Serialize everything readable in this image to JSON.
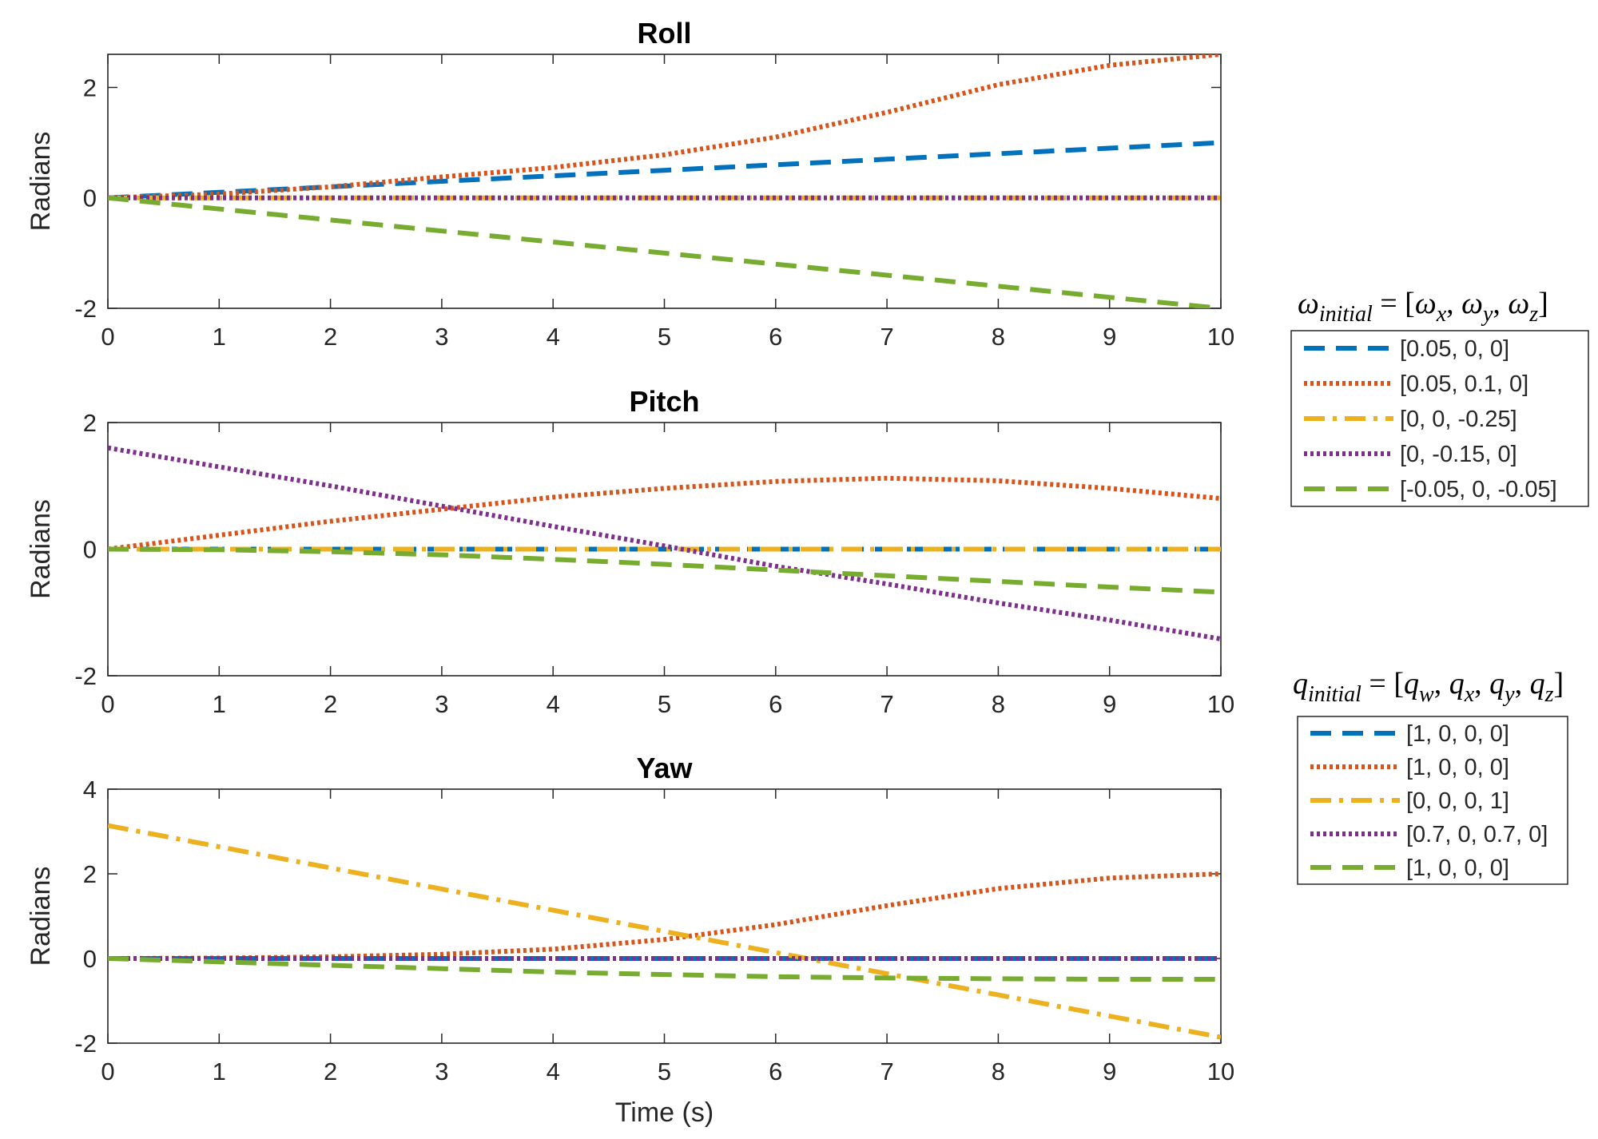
{
  "colors": {
    "blue": "#0072BD",
    "orange": "#D95319",
    "yellow": "#EDB120",
    "purple": "#7E2F8E",
    "green": "#77AC30",
    "axis": "#262626"
  },
  "chart_data": [
    {
      "type": "line",
      "title": "Roll",
      "xlabel": "",
      "ylabel": "Radians",
      "xlim": [
        0,
        10
      ],
      "ylim": [
        -2,
        2.6
      ],
      "xticks": [
        0,
        1,
        2,
        3,
        4,
        5,
        6,
        7,
        8,
        9,
        10
      ],
      "yticks": [
        -2,
        0,
        2
      ],
      "ytick_labels": [
        "-2",
        "0",
        "2"
      ],
      "series": [
        {
          "key": "s1",
          "color": "blue",
          "style": "dashed",
          "x": [
            0,
            1,
            2,
            3,
            4,
            5,
            6,
            7,
            8,
            9,
            10
          ],
          "y": [
            0,
            0.1,
            0.2,
            0.3,
            0.4,
            0.5,
            0.6,
            0.7,
            0.8,
            0.9,
            1.0
          ]
        },
        {
          "key": "s2",
          "color": "orange",
          "style": "dotted",
          "x": [
            0,
            1,
            2,
            3,
            4,
            5,
            6,
            7,
            8,
            9,
            10
          ],
          "y": [
            0,
            0.07,
            0.2,
            0.38,
            0.55,
            0.78,
            1.1,
            1.55,
            2.05,
            2.4,
            2.6
          ]
        },
        {
          "key": "s3",
          "color": "yellow",
          "style": "dashdot",
          "x": [
            0,
            10
          ],
          "y": [
            0,
            0
          ]
        },
        {
          "key": "s4",
          "color": "purple",
          "style": "dotted",
          "x": [
            0,
            10
          ],
          "y": [
            0,
            0
          ]
        },
        {
          "key": "s5",
          "color": "green",
          "style": "dashed",
          "x": [
            0,
            1,
            2,
            3,
            4,
            5,
            6,
            7,
            8,
            9,
            10
          ],
          "y": [
            0,
            -0.2,
            -0.4,
            -0.6,
            -0.8,
            -1.0,
            -1.2,
            -1.4,
            -1.6,
            -1.8,
            -2.0
          ]
        }
      ]
    },
    {
      "type": "line",
      "title": "Pitch",
      "xlabel": "",
      "ylabel": "Radians",
      "xlim": [
        0,
        10
      ],
      "ylim": [
        -2,
        2
      ],
      "xticks": [
        0,
        1,
        2,
        3,
        4,
        5,
        6,
        7,
        8,
        9,
        10
      ],
      "yticks": [
        -2,
        0,
        2
      ],
      "ytick_labels": [
        "-2",
        "0",
        "2"
      ],
      "series": [
        {
          "key": "s1",
          "color": "blue",
          "style": "dashed",
          "x": [
            0,
            10
          ],
          "y": [
            0,
            0
          ]
        },
        {
          "key": "s2",
          "color": "orange",
          "style": "dotted",
          "x": [
            0,
            1,
            2,
            3,
            4,
            5,
            6,
            7,
            8,
            9,
            10
          ],
          "y": [
            0,
            0.22,
            0.44,
            0.63,
            0.82,
            0.96,
            1.07,
            1.12,
            1.08,
            0.96,
            0.8
          ]
        },
        {
          "key": "s3",
          "color": "yellow",
          "style": "dashdot",
          "x": [
            0,
            10
          ],
          "y": [
            0,
            0
          ]
        },
        {
          "key": "s4",
          "color": "purple",
          "style": "dotted",
          "x": [
            0,
            1,
            2,
            3,
            4,
            5,
            6,
            7,
            8,
            9,
            10
          ],
          "y": [
            1.6,
            1.3,
            1.0,
            0.68,
            0.36,
            0.05,
            -0.27,
            -0.55,
            -0.85,
            -1.12,
            -1.42
          ]
        },
        {
          "key": "s5",
          "color": "green",
          "style": "dashed",
          "x": [
            0,
            1,
            2,
            3,
            4,
            5,
            6,
            7,
            8,
            9,
            10
          ],
          "y": [
            0,
            -0.01,
            -0.04,
            -0.09,
            -0.16,
            -0.24,
            -0.33,
            -0.42,
            -0.51,
            -0.6,
            -0.68
          ]
        }
      ]
    },
    {
      "type": "line",
      "title": "Yaw",
      "xlabel": "Time (s)",
      "ylabel": "Radians",
      "xlim": [
        0,
        10
      ],
      "ylim": [
        -2,
        4
      ],
      "xticks": [
        0,
        1,
        2,
        3,
        4,
        5,
        6,
        7,
        8,
        9,
        10
      ],
      "yticks": [
        -2,
        0,
        2,
        4
      ],
      "ytick_labels": [
        "-2",
        "0",
        "2",
        "4"
      ],
      "series": [
        {
          "key": "s1",
          "color": "blue",
          "style": "dashed",
          "x": [
            0,
            10
          ],
          "y": [
            0,
            0
          ]
        },
        {
          "key": "s2",
          "color": "orange",
          "style": "dotted",
          "x": [
            0,
            1,
            2,
            3,
            4,
            5,
            6,
            7,
            8,
            9,
            10
          ],
          "y": [
            0,
            0.01,
            0.04,
            0.1,
            0.22,
            0.45,
            0.8,
            1.25,
            1.65,
            1.9,
            2.0
          ]
        },
        {
          "key": "s3",
          "color": "yellow",
          "style": "dashdot",
          "x": [
            0,
            1,
            2,
            3,
            4,
            5,
            6,
            7,
            8,
            9,
            10
          ],
          "y": [
            3.14,
            2.64,
            2.14,
            1.64,
            1.14,
            0.64,
            0.14,
            -0.36,
            -0.86,
            -1.36,
            -1.86
          ]
        },
        {
          "key": "s4",
          "color": "purple",
          "style": "dotted",
          "x": [
            0,
            10
          ],
          "y": [
            0,
            0
          ]
        },
        {
          "key": "s5",
          "color": "green",
          "style": "dashed",
          "x": [
            0,
            1,
            2,
            3,
            4,
            5,
            6,
            7,
            8,
            9,
            10
          ],
          "y": [
            0,
            -0.08,
            -0.16,
            -0.24,
            -0.32,
            -0.38,
            -0.43,
            -0.46,
            -0.48,
            -0.49,
            -0.49
          ]
        }
      ]
    }
  ],
  "legends": [
    {
      "title_parts": [
        "ω",
        "initial",
        " = [",
        "ω",
        "x",
        ", ",
        "ω",
        "y",
        ", ",
        "ω",
        "z",
        "]"
      ],
      "entries": [
        {
          "color": "blue",
          "style": "dashed",
          "label": "[0.05, 0, 0]"
        },
        {
          "color": "orange",
          "style": "dotted",
          "label": "[0.05, 0.1, 0]"
        },
        {
          "color": "yellow",
          "style": "dashdot",
          "label": "[0, 0, -0.25]"
        },
        {
          "color": "purple",
          "style": "dotted",
          "label": "[0, -0.15, 0]"
        },
        {
          "color": "green",
          "style": "dashed",
          "label": "[-0.05, 0, -0.05]"
        }
      ]
    },
    {
      "title_parts": [
        "q",
        "initial",
        " = [",
        "q",
        "w",
        ", ",
        "q",
        "x",
        ", ",
        "q",
        "y",
        ", ",
        "q",
        "z",
        "]"
      ],
      "entries": [
        {
          "color": "blue",
          "style": "dashed",
          "label": "[1, 0, 0, 0]"
        },
        {
          "color": "orange",
          "style": "dotted",
          "label": "[1, 0, 0, 0]"
        },
        {
          "color": "yellow",
          "style": "dashdot",
          "label": "[0, 0, 0, 1]"
        },
        {
          "color": "purple",
          "style": "dotted",
          "label": "[0.7, 0, 0.7, 0]"
        },
        {
          "color": "green",
          "style": "dashed",
          "label": "[1, 0, 0, 0]"
        }
      ]
    }
  ]
}
